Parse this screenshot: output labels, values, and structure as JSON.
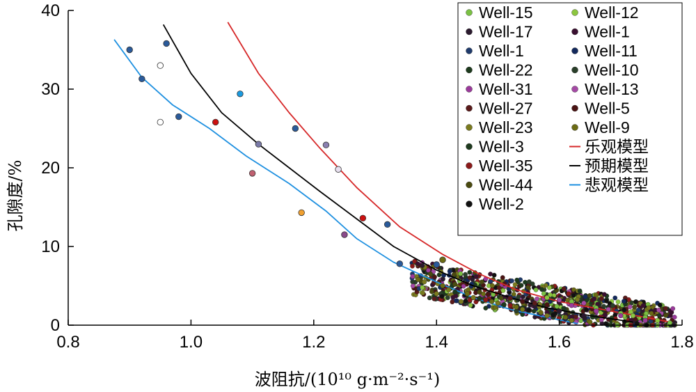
{
  "chart_data": {
    "type": "scatter",
    "xlabel": "波阻抗/(10¹⁰ g·m⁻²·s⁻¹)",
    "ylabel": "孔隙度/%",
    "xlim": [
      0.8,
      1.8
    ],
    "ylim": [
      0,
      40
    ],
    "xticks": [
      "0.8",
      "1.0",
      "1.2",
      "1.4",
      "1.6",
      "1.8"
    ],
    "yticks": [
      "0",
      "10",
      "20",
      "30",
      "40"
    ],
    "legend_position": "top-right",
    "series": [
      {
        "name": "Well-15",
        "color": "#7ac143",
        "points": [
          [
            1.7,
            1.5
          ],
          [
            1.74,
            1.0
          ],
          [
            1.78,
            0.3
          ],
          [
            1.66,
            2.2
          ],
          [
            1.62,
            3.0
          ]
        ]
      },
      {
        "name": "Well-12",
        "color": "#8cc63f",
        "points": [
          [
            1.72,
            1.2
          ],
          [
            1.76,
            0.6
          ],
          [
            1.68,
            2.0
          ],
          [
            1.58,
            3.5
          ]
        ]
      },
      {
        "name": "Well-17",
        "color": "#2b1a2e",
        "points": [
          [
            1.6,
            1.8
          ],
          [
            1.64,
            1.2
          ],
          [
            1.56,
            2.4
          ]
        ]
      },
      {
        "name": "Well-1",
        "color": "#3a1030",
        "points": [
          [
            1.58,
            1.6
          ],
          [
            1.62,
            1.0
          ]
        ]
      },
      {
        "name": "Well-1",
        "color": "#1f3a6b",
        "points": [
          [
            1.55,
            2.0
          ],
          [
            1.52,
            2.6
          ]
        ]
      },
      {
        "name": "Well-11",
        "color": "#13295c",
        "points": [
          [
            1.57,
            1.5
          ],
          [
            1.61,
            0.8
          ]
        ]
      },
      {
        "name": "Well-22",
        "color": "#1d3a1d",
        "points": [
          [
            1.54,
            2.2
          ],
          [
            1.5,
            2.8
          ]
        ]
      },
      {
        "name": "Well-10",
        "color": "#2a3f2a",
        "points": [
          [
            1.53,
            1.8
          ],
          [
            1.59,
            1.0
          ]
        ]
      },
      {
        "name": "Well-31",
        "color": "#9b3a9b",
        "points": [
          [
            1.62,
            2.5
          ],
          [
            1.66,
            1.8
          ],
          [
            1.7,
            1.2
          ],
          [
            1.74,
            0.6
          ]
        ]
      },
      {
        "name": "Well-13",
        "color": "#a54aa5",
        "points": [
          [
            1.64,
            2.8
          ],
          [
            1.68,
            2.0
          ],
          [
            1.6,
            3.2
          ]
        ]
      },
      {
        "name": "Well-27",
        "color": "#5a1a1a",
        "points": [
          [
            1.56,
            2.8
          ],
          [
            1.52,
            3.4
          ]
        ]
      },
      {
        "name": "Well-5",
        "color": "#4a1414",
        "points": [
          [
            1.58,
            2.6
          ],
          [
            1.54,
            3.0
          ]
        ]
      },
      {
        "name": "Well-23",
        "color": "#7a7a1e",
        "points": [
          [
            1.38,
            5.5
          ],
          [
            1.42,
            4.5
          ],
          [
            1.46,
            3.5
          ],
          [
            1.5,
            2.8
          ],
          [
            1.54,
            2.0
          ],
          [
            1.58,
            1.2
          ],
          [
            1.62,
            0.6
          ],
          [
            1.4,
            4.0
          ],
          [
            1.44,
            3.0
          ]
        ]
      },
      {
        "name": "Well-9",
        "color": "#6b6b14",
        "points": [
          [
            1.37,
            5.8
          ],
          [
            1.41,
            5.0
          ],
          [
            1.45,
            4.0
          ],
          [
            1.49,
            3.0
          ],
          [
            1.53,
            2.3
          ],
          [
            1.57,
            1.6
          ],
          [
            1.61,
            1.0
          ],
          [
            1.65,
            0.4
          ]
        ]
      },
      {
        "name": "Well-3",
        "color": "#1e3a1e",
        "points": [
          [
            1.43,
            4.2
          ],
          [
            1.47,
            3.4
          ],
          [
            1.51,
            2.6
          ]
        ]
      },
      {
        "name": "Well-35",
        "color": "#8b1a1a",
        "points": [
          [
            1.48,
            3.2
          ],
          [
            1.52,
            2.5
          ]
        ]
      },
      {
        "name": "Well-44",
        "color": "#4a4a10",
        "points": [
          [
            1.39,
            6.5
          ],
          [
            1.43,
            5.2
          ],
          [
            1.47,
            4.2
          ]
        ]
      },
      {
        "name": "Well-2",
        "color": "#111111",
        "points": [
          [
            1.55,
            1.9
          ],
          [
            1.59,
            1.3
          ]
        ]
      }
    ],
    "highlight_points": [
      {
        "x": 0.9,
        "y": 35.0,
        "color": "#2a5a9a"
      },
      {
        "x": 0.96,
        "y": 35.8,
        "color": "#2a5a9a"
      },
      {
        "x": 0.92,
        "y": 31.3,
        "color": "#2a5a9a"
      },
      {
        "x": 0.95,
        "y": 33.0,
        "color": "#ffffff"
      },
      {
        "x": 0.95,
        "y": 25.8,
        "color": "#ffffff"
      },
      {
        "x": 0.98,
        "y": 26.5,
        "color": "#2a5a9a"
      },
      {
        "x": 1.04,
        "y": 25.8,
        "color": "#cc1111"
      },
      {
        "x": 1.08,
        "y": 29.4,
        "color": "#1a9ae0"
      },
      {
        "x": 1.11,
        "y": 23.0,
        "color": "#7a7aa8"
      },
      {
        "x": 1.1,
        "y": 19.3,
        "color": "#c06070"
      },
      {
        "x": 1.17,
        "y": 25.0,
        "color": "#2a5a9a"
      },
      {
        "x": 1.22,
        "y": 22.9,
        "color": "#8a80b0"
      },
      {
        "x": 1.24,
        "y": 19.8,
        "color": "#e8e0f0"
      },
      {
        "x": 1.18,
        "y": 14.3,
        "color": "#f0a030"
      },
      {
        "x": 1.28,
        "y": 13.6,
        "color": "#cc1111"
      },
      {
        "x": 1.25,
        "y": 11.5,
        "color": "#8a4a8a"
      },
      {
        "x": 1.32,
        "y": 12.8,
        "color": "#2a5a9a"
      },
      {
        "x": 1.34,
        "y": 7.8,
        "color": "#2a5a9a"
      },
      {
        "x": 1.4,
        "y": 7.7,
        "color": "#2a5a9a"
      },
      {
        "x": 1.41,
        "y": 8.3,
        "color": "#6b6b14"
      }
    ],
    "models": [
      {
        "name": "乐观模型",
        "color": "#d62728",
        "points": [
          [
            1.06,
            38.5
          ],
          [
            1.11,
            32.0
          ],
          [
            1.16,
            27.0
          ],
          [
            1.21,
            22.5
          ],
          [
            1.27,
            17.5
          ],
          [
            1.34,
            12.5
          ],
          [
            1.41,
            9.0
          ],
          [
            1.47,
            6.5
          ],
          [
            1.53,
            4.5
          ],
          [
            1.6,
            3.0
          ],
          [
            1.67,
            2.0
          ],
          [
            1.74,
            1.0
          ],
          [
            1.78,
            0.4
          ]
        ]
      },
      {
        "name": "预期模型",
        "color": "#000000",
        "points": [
          [
            0.955,
            38.2
          ],
          [
            1.0,
            32.0
          ],
          [
            1.05,
            27.0
          ],
          [
            1.11,
            23.0
          ],
          [
            1.16,
            20.0
          ],
          [
            1.21,
            17.0
          ],
          [
            1.27,
            13.5
          ],
          [
            1.33,
            10.0
          ],
          [
            1.4,
            7.0
          ],
          [
            1.46,
            5.0
          ],
          [
            1.52,
            3.5
          ],
          [
            1.58,
            2.2
          ],
          [
            1.65,
            1.2
          ],
          [
            1.72,
            0.4
          ]
        ]
      },
      {
        "name": "悲观模型",
        "color": "#1e90e0",
        "points": [
          [
            0.875,
            36.3
          ],
          [
            0.92,
            31.5
          ],
          [
            0.97,
            28.0
          ],
          [
            1.03,
            25.0
          ],
          [
            1.09,
            21.5
          ],
          [
            1.16,
            18.0
          ],
          [
            1.22,
            14.5
          ],
          [
            1.27,
            11.0
          ],
          [
            1.33,
            8.0
          ],
          [
            1.4,
            5.5
          ],
          [
            1.46,
            3.5
          ],
          [
            1.52,
            2.0
          ],
          [
            1.58,
            1.0
          ],
          [
            1.63,
            0.2
          ]
        ]
      }
    ]
  }
}
